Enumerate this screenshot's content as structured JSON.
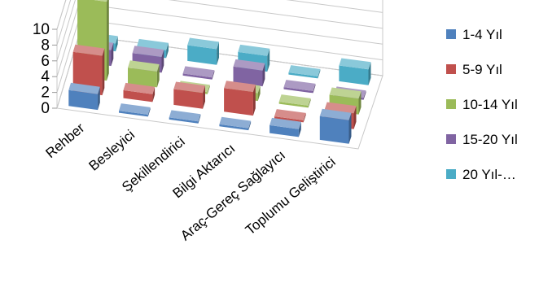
{
  "chart_data": {
    "type": "bar",
    "variant": "3d-column",
    "title": "",
    "categories": [
      "Rehber",
      "Besleyici",
      "Şekillendirici",
      "Bilgi Aktarıcı",
      "Araç-Gereç Sağlayıcı",
      "Toplumu Geliştirici"
    ],
    "y_ticks": [
      "0",
      "2",
      "4",
      "6",
      "8",
      "10"
    ],
    "ylim": [
      0,
      10
    ],
    "grid": true,
    "legend_position": "right",
    "series": [
      {
        "name": "1-4 Yıl",
        "color": "#4f81bd",
        "values": [
          2,
          0,
          0,
          0,
          1,
          3
        ]
      },
      {
        "name": "5-9 Yıl",
        "color": "#c0504d",
        "values": [
          5,
          1,
          2,
          3,
          0,
          2
        ]
      },
      {
        "name": "10-14 Yıl",
        "color": "#9bbb59",
        "values": [
          10,
          2,
          0,
          1,
          0,
          2
        ]
      },
      {
        "name": "15-20 Yıl",
        "color": "#8064a2",
        "values": [
          2,
          2,
          0,
          2,
          0,
          0
        ]
      },
      {
        "name": "20 Yıl-…",
        "color": "#4bacc6",
        "values": [
          1,
          1,
          2,
          2,
          0,
          2
        ]
      }
    ]
  }
}
